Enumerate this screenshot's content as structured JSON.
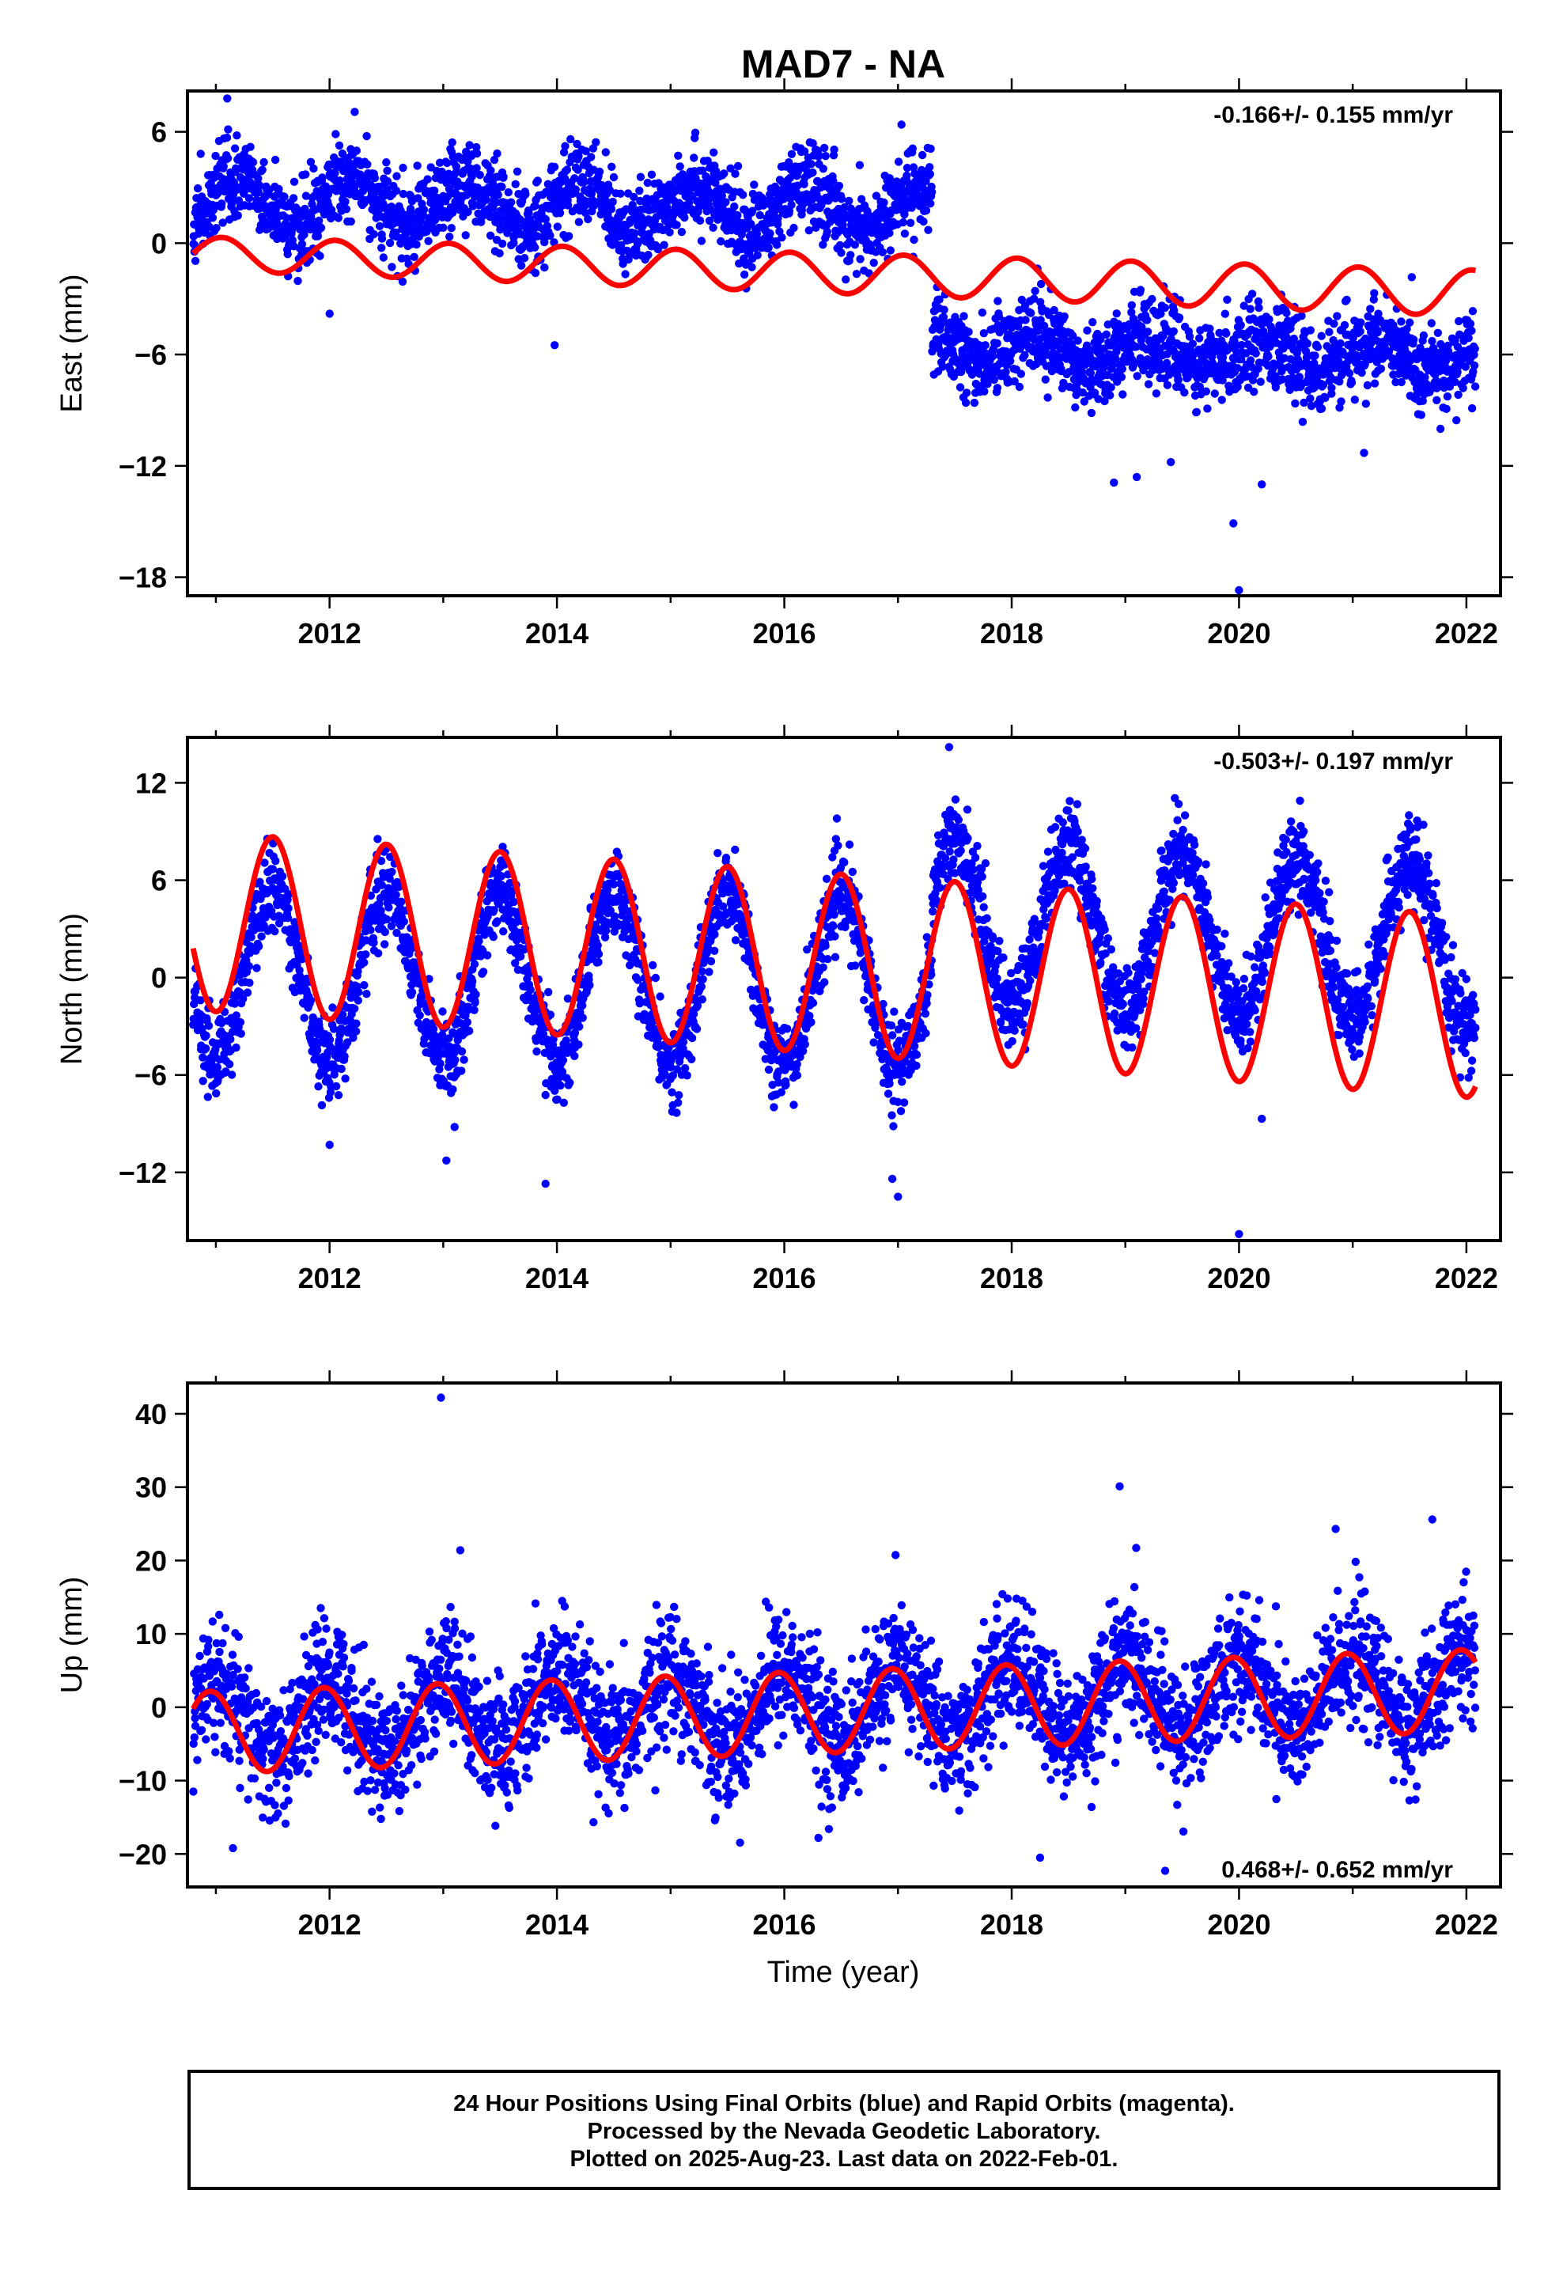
{
  "chart_data": [
    {
      "type": "scatter",
      "title": "MAD7 - NA",
      "ylabel": "East (mm)",
      "xlabel": "",
      "xlim": [
        2010.75,
        2022.3
      ],
      "ylim": [
        -19,
        8.2
      ],
      "yticks": [
        -18,
        -12,
        -6,
        0,
        6
      ],
      "ytick_labels": [
        "−18",
        "−12",
        "−6",
        "0",
        "6"
      ],
      "xticks": [
        2012,
        2014,
        2016,
        2018,
        2020,
        2022
      ],
      "xtick_labels": [
        "2012",
        "2014",
        "2016",
        "2018",
        "2020",
        "2022"
      ],
      "rate_text": "-0.166+/- 0.155 mm/yr",
      "rate_position": "top-right",
      "data_range": [
        2010.8,
        2022.08
      ],
      "series": [
        {
          "kind": "points",
          "color": "#0000ff",
          "segments": [
            {
              "x_start": 2010.8,
              "x_end": 2017.3,
              "y_start": 2.2,
              "y_end": 1.8,
              "seasonal_amplitude": 1.3,
              "seasonal_phase": 0.2,
              "scatter": 1.1
            },
            {
              "x_start": 2017.3,
              "x_end": 2022.08,
              "y_start": -5.5,
              "y_end": -6.3,
              "seasonal_amplitude": 0.8,
              "seasonal_phase": 0.2,
              "scatter": 1.1
            }
          ],
          "outliers": [
            {
              "x": 2011.1,
              "y": 7.8
            },
            {
              "x": 2012.0,
              "y": -3.8
            },
            {
              "x": 2013.98,
              "y": -5.5
            },
            {
              "x": 2018.9,
              "y": -12.9
            },
            {
              "x": 2019.1,
              "y": -12.6
            },
            {
              "x": 2019.95,
              "y": -15.1
            },
            {
              "x": 2020.0,
              "y": -18.7
            },
            {
              "x": 2020.2,
              "y": -13.0
            },
            {
              "x": 2021.1,
              "y": -11.3
            },
            {
              "x": 2019.4,
              "y": -11.8
            },
            {
              "x": 2022.05,
              "y": -8.9
            }
          ]
        },
        {
          "kind": "model_line",
          "color": "#ff0000",
          "x_start": 2010.8,
          "x_end": 2022.08,
          "y_start": -0.55,
          "y_end": -2.7,
          "amplitude_start": 0.9,
          "amplitude_end": 1.25,
          "phase_peak": 0.05,
          "offset_at": 2017.3,
          "offset_value": -1.0
        }
      ]
    },
    {
      "type": "scatter",
      "ylabel": "North (mm)",
      "xlabel": "",
      "xlim": [
        2010.75,
        2022.3
      ],
      "ylim": [
        -16.2,
        14.8
      ],
      "yticks": [
        -12,
        -6,
        0,
        6,
        12
      ],
      "ytick_labels": [
        "−12",
        "−6",
        "0",
        "6",
        "12"
      ],
      "xticks": [
        2012,
        2014,
        2016,
        2018,
        2020,
        2022
      ],
      "xtick_labels": [
        "2012",
        "2014",
        "2016",
        "2018",
        "2020",
        "2022"
      ],
      "rate_text": "-0.503+/- 0.197 mm/yr",
      "rate_position": "top-right",
      "data_range": [
        2010.8,
        2022.08
      ],
      "series": [
        {
          "kind": "points",
          "color": "#0000ff",
          "segments": [
            {
              "x_start": 2010.8,
              "x_end": 2017.3,
              "y_start": 0.3,
              "y_end": -0.3,
              "seasonal_amplitude": 5.2,
              "seasonal_phase": 0.5,
              "scatter": 1.3
            },
            {
              "x_start": 2017.3,
              "x_end": 2022.08,
              "y_start": 3.5,
              "y_end": 2.0,
              "seasonal_amplitude": 5.0,
              "seasonal_phase": 0.5,
              "scatter": 1.3
            }
          ],
          "outliers": [
            {
              "x": 2017.45,
              "y": 14.2
            },
            {
              "x": 2013.9,
              "y": -12.7
            },
            {
              "x": 2016.95,
              "y": -12.4
            },
            {
              "x": 2017.0,
              "y": -13.5
            },
            {
              "x": 2020.0,
              "y": -15.8
            },
            {
              "x": 2020.2,
              "y": -8.7
            },
            {
              "x": 2012.0,
              "y": -10.3
            },
            {
              "x": 2013.1,
              "y": -9.2
            },
            {
              "x": 2022.08,
              "y": -3.1
            }
          ]
        },
        {
          "kind": "model_line",
          "color": "#ff0000",
          "x_start": 2010.8,
          "x_end": 2022.08,
          "y_start": 3.5,
          "y_end": -1.8,
          "amplitude_start": 5.5,
          "amplitude_end": 5.6,
          "phase_peak": 0.5,
          "offset_at": null,
          "offset_value": 0
        }
      ]
    },
    {
      "type": "scatter",
      "ylabel": "Up (mm)",
      "xlabel": "Time (year)",
      "xlim": [
        2010.75,
        2022.3
      ],
      "ylim": [
        -24.5,
        44.2
      ],
      "yticks": [
        -20,
        -10,
        0,
        10,
        20,
        30,
        40
      ],
      "ytick_labels": [
        "−20",
        "−10",
        "0",
        "10",
        "20",
        "30",
        "40"
      ],
      "xticks": [
        2012,
        2014,
        2016,
        2018,
        2020,
        2022
      ],
      "xtick_labels": [
        "2012",
        "2014",
        "2016",
        "2018",
        "2020",
        "2022"
      ],
      "rate_text": "0.468+/- 0.652 mm/yr",
      "rate_position": "bottom-right",
      "data_range": [
        2010.8,
        2022.08
      ],
      "series": [
        {
          "kind": "points",
          "color": "#0000ff",
          "segments": [
            {
              "x_start": 2010.8,
              "x_end": 2022.08,
              "y_start": -2.0,
              "y_end": 2.5,
              "seasonal_amplitude": 5.0,
              "seasonal_phase": 0.0,
              "scatter": 4.3
            }
          ],
          "outliers": [
            {
              "x": 2012.98,
              "y": 42.2
            },
            {
              "x": 2018.95,
              "y": 30.1
            },
            {
              "x": 2021.7,
              "y": 25.6
            },
            {
              "x": 2020.85,
              "y": 24.3
            },
            {
              "x": 2013.15,
              "y": 21.4
            },
            {
              "x": 2011.15,
              "y": -19.2
            },
            {
              "x": 2018.25,
              "y": -20.5
            },
            {
              "x": 2019.35,
              "y": -22.3
            },
            {
              "x": 2016.3,
              "y": -17.8
            }
          ]
        },
        {
          "kind": "model_line",
          "color": "#ff0000",
          "x_start": 2010.8,
          "x_end": 2022.08,
          "y_start": -3.5,
          "y_end": 2.3,
          "amplitude_start": 5.6,
          "amplitude_end": 5.6,
          "phase_peak": 0.95,
          "offset_at": null,
          "offset_value": 0
        }
      ]
    }
  ],
  "footer": {
    "line1": "24 Hour Positions Using Final Orbits (blue) and Rapid Orbits (magenta).",
    "line2": "Processed by the Nevada Geodetic Laboratory.",
    "line3": "Plotted on 2025-Aug-23. Last data on 2022-Feb-01."
  }
}
